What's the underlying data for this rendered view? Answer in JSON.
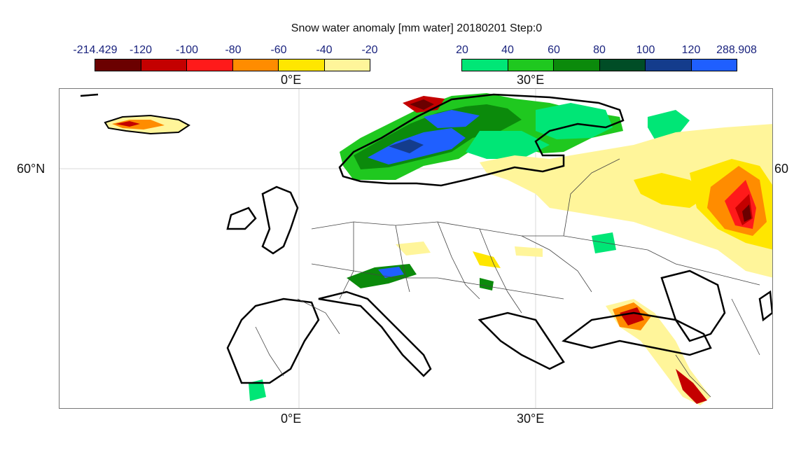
{
  "title": "Snow water anomaly [mm water] 20180201 Step:0",
  "colorbar_negative": {
    "ticks": [
      "-214.429",
      "-120",
      "-100",
      "-80",
      "-60",
      "-40",
      "-20"
    ],
    "colors": [
      "#6b0000",
      "#c40000",
      "#ff1a1a",
      "#ff8c00",
      "#ffe600",
      "#fff59a"
    ]
  },
  "colorbar_positive": {
    "ticks": [
      "20",
      "40",
      "60",
      "80",
      "100",
      "120",
      "288.908"
    ],
    "colors": [
      "#00e676",
      "#1fc81f",
      "#0b8a0b",
      "#004d26",
      "#143c8c",
      "#1f5fff"
    ]
  },
  "axes": {
    "top_labels": [
      "0°E",
      "30°E"
    ],
    "bottom_labels": [
      "0°E",
      "30°E"
    ],
    "left_labels": [
      "60°N"
    ],
    "right_labels": [
      "60"
    ]
  },
  "colors": {
    "coast": "#000000",
    "borders": "#444444",
    "grid": "#d8d8d8"
  }
}
